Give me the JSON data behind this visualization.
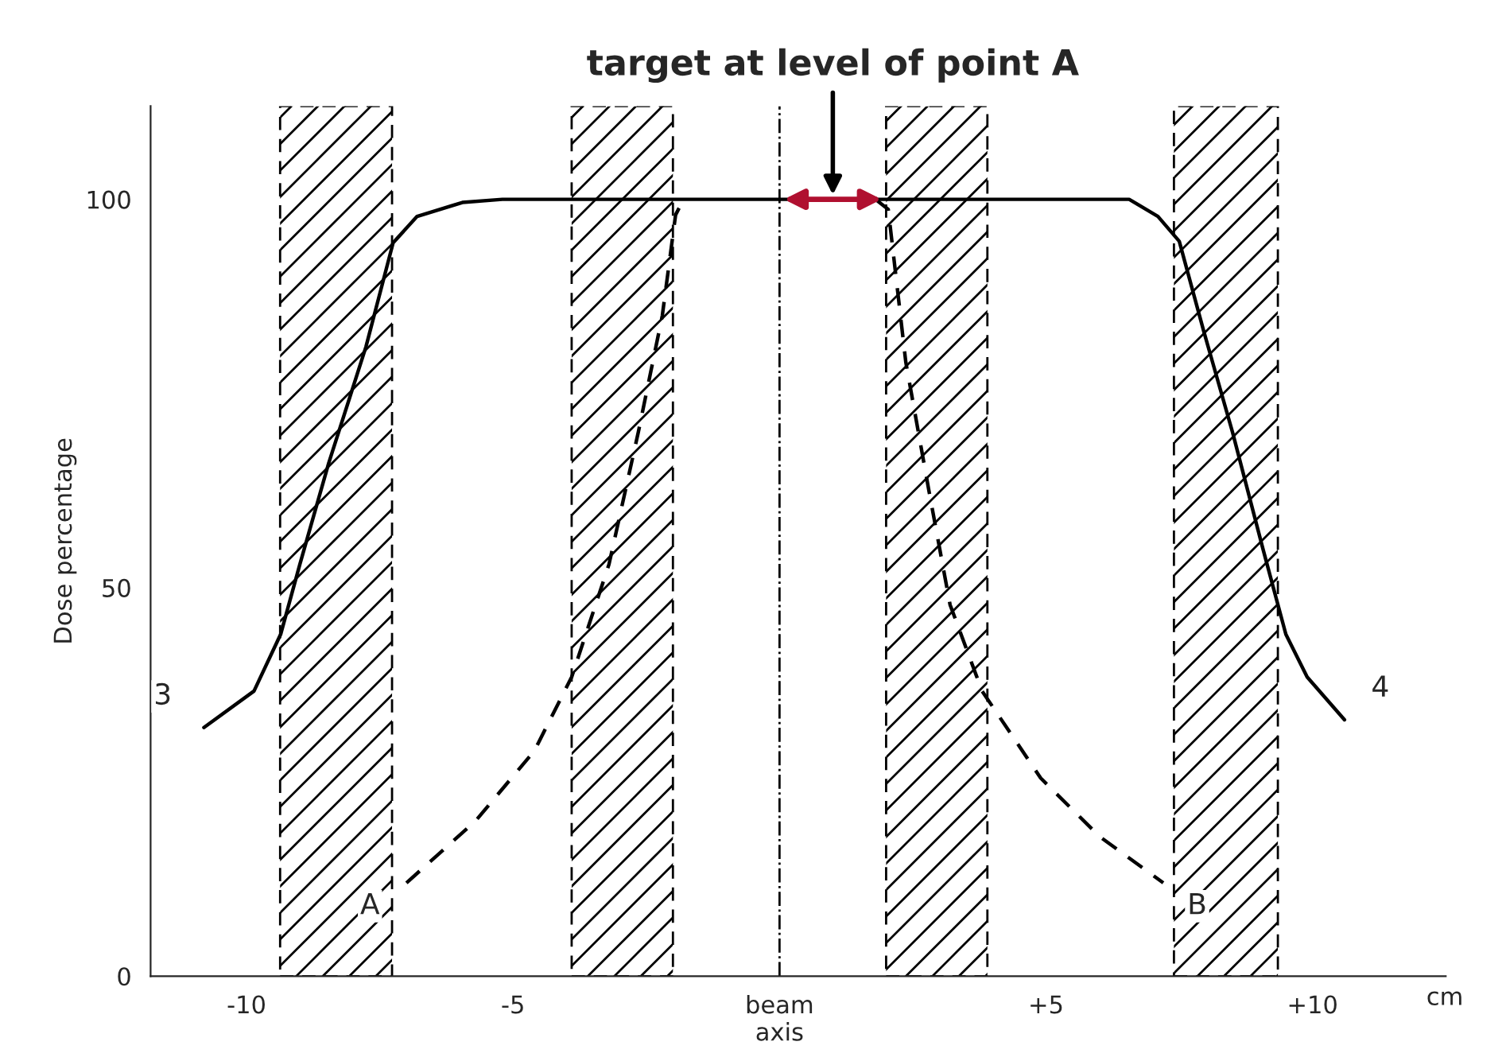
{
  "chart_data": {
    "type": "line",
    "ylabel": "Dose percentage",
    "xlabel": "cm",
    "xlim": [
      -11.8,
      12.5
    ],
    "ylim": [
      0,
      112
    ],
    "xticks": [
      {
        "value": -10,
        "label": "-10"
      },
      {
        "value": -5,
        "label": "-5"
      },
      {
        "value": 0,
        "label": "beam\naxis"
      },
      {
        "value": 5,
        "label": "+5"
      },
      {
        "value": 10,
        "label": "+10"
      }
    ],
    "yticks": [
      0,
      50,
      100
    ],
    "grid": false,
    "series": [
      {
        "color": "#000000",
        "line_style": "solid",
        "x": [
          -10.8,
          -9.86,
          -9.36,
          -9.0,
          -8.46,
          -7.76,
          -7.25,
          -6.8,
          -5.95,
          -5.2,
          6.56,
          7.1,
          7.5,
          7.96,
          8.5,
          9.07,
          9.5,
          9.9,
          10.6
        ],
        "values": [
          32,
          36.7,
          44,
          53,
          66,
          81,
          94.4,
          97.8,
          99.6,
          100,
          100,
          97.8,
          94.6,
          83,
          70,
          55,
          44,
          38.5,
          33
        ]
      },
      {
        "color": "#000000",
        "line_style": "dashed",
        "x": [
          -7.0,
          -5.7,
          -4.6,
          -3.9,
          -3.2,
          -2.65,
          -2.2,
          -1.95,
          -1.8
        ],
        "values": [
          12,
          20,
          29,
          38.5,
          53,
          70,
          85,
          98,
          100
        ]
      },
      {
        "color": "#000000",
        "line_style": "dashed",
        "x": [
          1.8,
          2.04,
          2.37,
          2.8,
          3.2,
          3.8,
          4.9,
          6.0,
          7.2
        ],
        "values": [
          100,
          98.7,
          79,
          62.6,
          47.8,
          36.7,
          25.5,
          18,
          12
        ]
      }
    ],
    "ref_lines": [
      {
        "axis": "x",
        "value": 0,
        "line_style": "dashdot"
      }
    ],
    "bands": [
      {
        "axis": "x",
        "from": -9.37,
        "to": -7.27
      },
      {
        "axis": "x",
        "from": -3.9,
        "to": -2.0
      },
      {
        "axis": "x",
        "from": 2.0,
        "to": 3.9
      },
      {
        "axis": "x",
        "from": 7.4,
        "to": 9.35
      }
    ],
    "annotations": [
      "3",
      "4",
      "A",
      "B",
      "target at level of point A"
    ]
  }
}
